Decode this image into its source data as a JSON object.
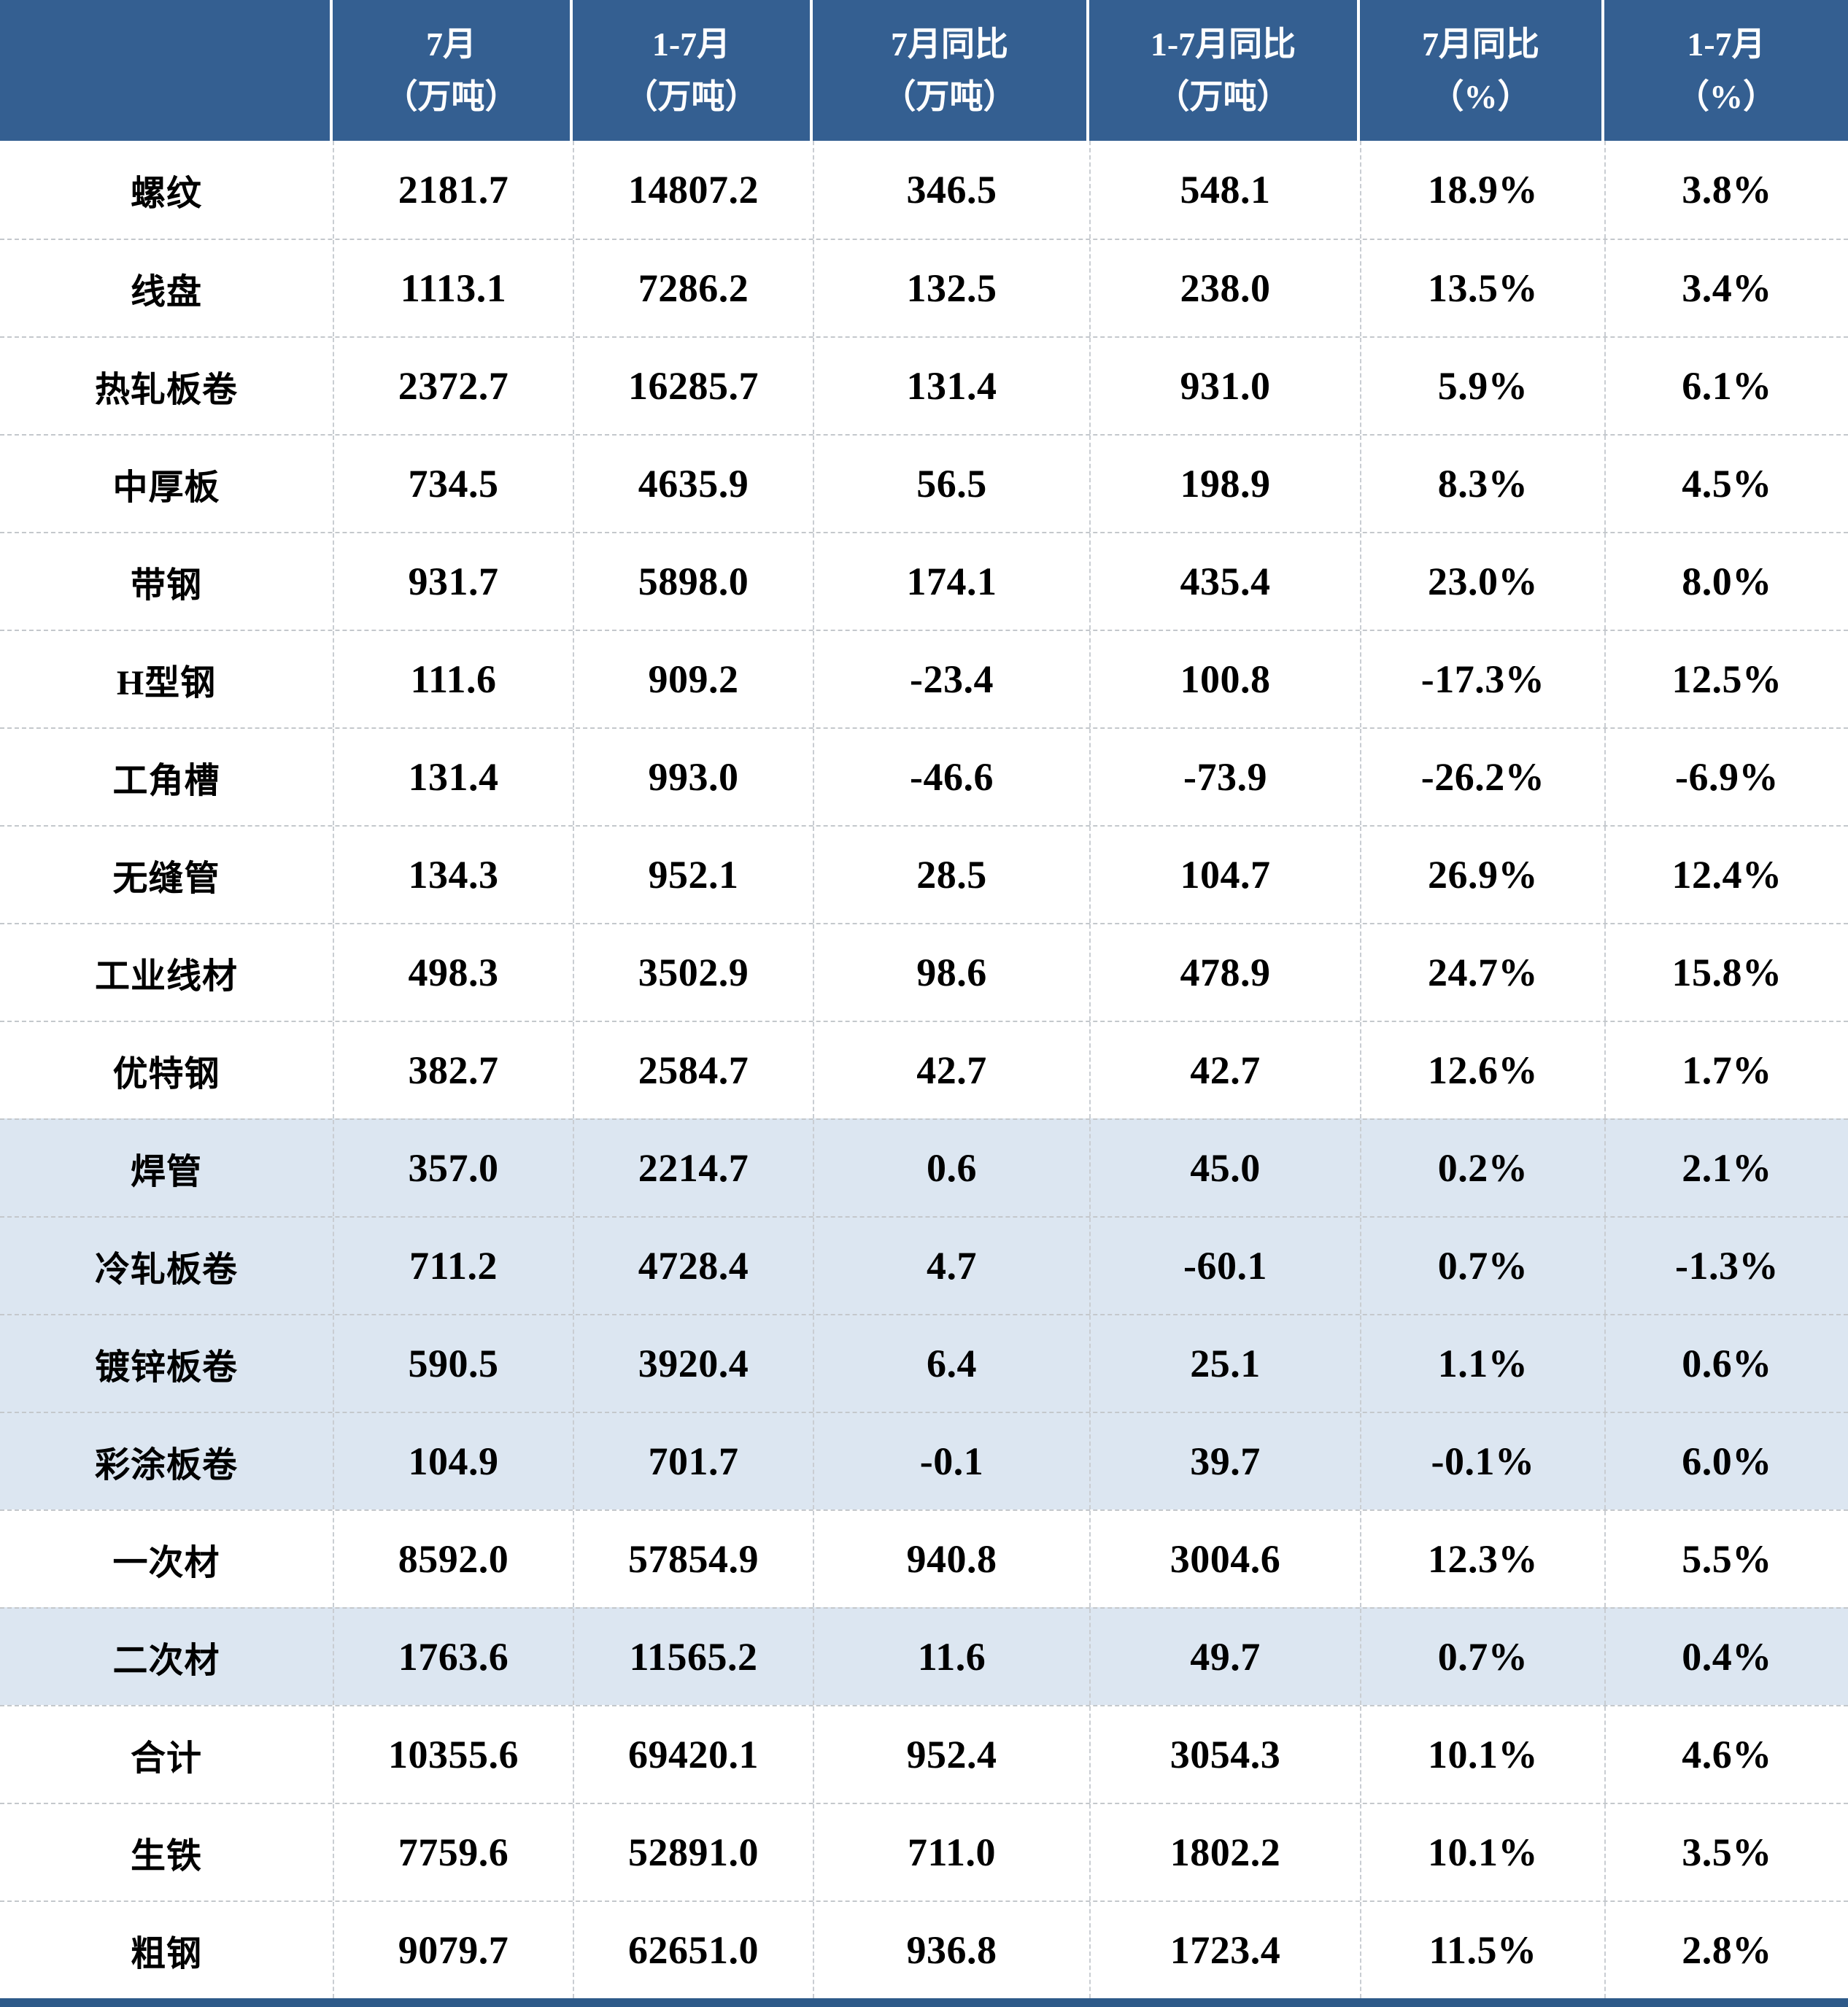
{
  "chart_data": {
    "type": "table",
    "title": "",
    "header": {
      "row_label_column": "",
      "columns": [
        {
          "line1": "7月",
          "line2": "（万吨）"
        },
        {
          "line1": "1-7月",
          "line2": "（万吨）"
        },
        {
          "line1": "7月同比",
          "line2": "（万吨）"
        },
        {
          "line1": "1-7月同比",
          "line2": "（万吨）"
        },
        {
          "line1": "7月同比",
          "line2": "（%）"
        },
        {
          "line1": "1-7月",
          "line2": "（%）"
        }
      ]
    },
    "rows": [
      {
        "label": "螺纹",
        "values": [
          "2181.7",
          "14807.2",
          "346.5",
          "548.1",
          "18.9%",
          "3.8%"
        ]
      },
      {
        "label": "线盘",
        "values": [
          "1113.1",
          "7286.2",
          "132.5",
          "238.0",
          "13.5%",
          "3.4%"
        ]
      },
      {
        "label": "热轧板卷",
        "values": [
          "2372.7",
          "16285.7",
          "131.4",
          "931.0",
          "5.9%",
          "6.1%"
        ]
      },
      {
        "label": "中厚板",
        "values": [
          "734.5",
          "4635.9",
          "56.5",
          "198.9",
          "8.3%",
          "4.5%"
        ]
      },
      {
        "label": "带钢",
        "values": [
          "931.7",
          "5898.0",
          "174.1",
          "435.4",
          "23.0%",
          "8.0%"
        ]
      },
      {
        "label": "H型钢",
        "values": [
          "111.6",
          "909.2",
          "-23.4",
          "100.8",
          "-17.3%",
          "12.5%"
        ]
      },
      {
        "label": "工角槽",
        "values": [
          "131.4",
          "993.0",
          "-46.6",
          "-73.9",
          "-26.2%",
          "-6.9%"
        ]
      },
      {
        "label": "无缝管",
        "values": [
          "134.3",
          "952.1",
          "28.5",
          "104.7",
          "26.9%",
          "12.4%"
        ]
      },
      {
        "label": "工业线材",
        "values": [
          "498.3",
          "3502.9",
          "98.6",
          "478.9",
          "24.7%",
          "15.8%"
        ]
      },
      {
        "label": "优特钢",
        "values": [
          "382.7",
          "2584.7",
          "42.7",
          "42.7",
          "12.6%",
          "1.7%"
        ]
      },
      {
        "label": "焊管",
        "values": [
          "357.0",
          "2214.7",
          "0.6",
          "45.0",
          "0.2%",
          "2.1%"
        ]
      },
      {
        "label": "冷轧板卷",
        "values": [
          "711.2",
          "4728.4",
          "4.7",
          "-60.1",
          "0.7%",
          "-1.3%"
        ]
      },
      {
        "label": "镀锌板卷",
        "values": [
          "590.5",
          "3920.4",
          "6.4",
          "25.1",
          "1.1%",
          "0.6%"
        ]
      },
      {
        "label": "彩涂板卷",
        "values": [
          "104.9",
          "701.7",
          "-0.1",
          "39.7",
          "-0.1%",
          "6.0%"
        ]
      },
      {
        "label": "一次材",
        "values": [
          "8592.0",
          "57854.9",
          "940.8",
          "3004.6",
          "12.3%",
          "5.5%"
        ]
      },
      {
        "label": "二次材",
        "values": [
          "1763.6",
          "11565.2",
          "11.6",
          "49.7",
          "0.7%",
          "0.4%"
        ]
      },
      {
        "label": "合计",
        "values": [
          "10355.6",
          "69420.1",
          "952.4",
          "3054.3",
          "10.1%",
          "4.6%"
        ]
      },
      {
        "label": "生铁",
        "values": [
          "7759.6",
          "52891.0",
          "711.0",
          "1802.2",
          "10.1%",
          "3.5%"
        ]
      },
      {
        "label": "粗钢",
        "values": [
          "9079.7",
          "62651.0",
          "936.8",
          "1723.4",
          "11.5%",
          "2.8%"
        ]
      }
    ],
    "shaded_rows": [
      "焊管",
      "冷轧板卷",
      "镀锌板卷",
      "彩涂板卷",
      "二次材"
    ],
    "layout": {
      "grid": "dashed",
      "legend": "none"
    }
  },
  "colors": {
    "header_bg": "#345F91",
    "header_text": "#FFFFFF",
    "band_bg": "#DCE6F1",
    "row_bg": "#FFFFFF",
    "body_text": "#000000",
    "grid_line": "#C4C8CC",
    "bottom_bar": "#2E5A89"
  }
}
